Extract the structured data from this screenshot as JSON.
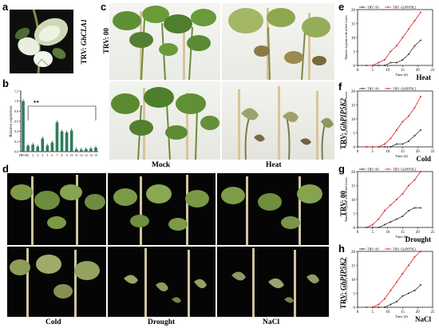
{
  "panel_letters": [
    "a",
    "b",
    "c",
    "d",
    "e",
    "f",
    "g",
    "h"
  ],
  "panel_a": {
    "side_label_prefix": "TRV: ",
    "side_label_gene": "GhCLA1"
  },
  "panel_b": {
    "significance": "**"
  },
  "panel_c": {
    "captions": [
      "Mock",
      "Heat"
    ]
  },
  "panel_d": {
    "captions": [
      "Cold",
      "Drought",
      "NaCl"
    ]
  },
  "side_labels": {
    "c_upper": "TRV: 00",
    "f": {
      "prefix": "TRV: ",
      "gene": "GhPIP5K2"
    },
    "g": "TRV: 00",
    "h": {
      "prefix": "TRV: ",
      "gene": "GhPIP5K2"
    }
  },
  "chart_data": [
    {
      "type": "bar",
      "panel": "b",
      "ylabel": "Relative expression",
      "categories": [
        "TRV:00",
        "1",
        "2",
        "3",
        "4",
        "5",
        "6",
        "7",
        "8",
        "9",
        "10",
        "11",
        "12",
        "13",
        "14",
        "15"
      ],
      "values": [
        1.0,
        0.12,
        0.14,
        0.1,
        0.26,
        0.12,
        0.18,
        0.58,
        0.4,
        0.38,
        0.42,
        0.05,
        0.04,
        0.05,
        0.06,
        0.08
      ],
      "ylim": [
        0,
        1.2
      ],
      "yticks": [
        0.0,
        0.2,
        0.4,
        0.6,
        0.8,
        1.0,
        1.2
      ],
      "bar_color": "#2e7d5b"
    },
    {
      "type": "line",
      "panel": "e",
      "condition": "Heat",
      "ylabel": "Number of plants with wilted leaves",
      "xlabel": "Time (d)",
      "xlim": [
        0,
        25
      ],
      "ylim": [
        0,
        20
      ],
      "xticks": [
        0,
        5,
        10,
        15,
        20,
        25
      ],
      "yticks": [
        0,
        5,
        10,
        15,
        20
      ],
      "series": [
        {
          "name": "TRV: 00",
          "color": "#333333",
          "x": [
            3,
            5,
            7,
            9,
            11,
            13,
            15,
            17,
            19,
            21
          ],
          "y": [
            0,
            0,
            0,
            0,
            1,
            1,
            2,
            4,
            7,
            9
          ]
        },
        {
          "name": "TRV: GhPIP5K2",
          "color": "#d62728",
          "x": [
            3,
            5,
            7,
            9,
            11,
            13,
            15,
            17,
            19,
            21
          ],
          "y": [
            0,
            0,
            1,
            2,
            5,
            7,
            10,
            13,
            16,
            19
          ]
        }
      ]
    },
    {
      "type": "line",
      "panel": "f",
      "condition": "Cold",
      "ylabel": "Number of plants with blackened new leaves",
      "xlabel": "Time (d)",
      "xlim": [
        0,
        25
      ],
      "ylim": [
        0,
        20
      ],
      "xticks": [
        0,
        5,
        10,
        15,
        20,
        25
      ],
      "yticks": [
        0,
        5,
        10,
        15,
        20
      ],
      "series": [
        {
          "name": "TRV: 00",
          "color": "#333333",
          "x": [
            3,
            5,
            7,
            9,
            11,
            13,
            15,
            17,
            19,
            21
          ],
          "y": [
            0,
            0,
            0,
            0,
            0,
            1,
            1,
            2,
            4,
            6
          ]
        },
        {
          "name": "TRV: GhPIP5K2",
          "color": "#d62728",
          "x": [
            3,
            5,
            7,
            9,
            11,
            13,
            15,
            17,
            19,
            21
          ],
          "y": [
            0,
            0,
            0,
            1,
            3,
            6,
            9,
            11,
            14,
            18
          ]
        }
      ]
    },
    {
      "type": "line",
      "panel": "g",
      "condition": "Drought",
      "ylabel": "Number of plants with wilted leaves",
      "xlabel": "Time (d)",
      "xlim": [
        0,
        25
      ],
      "ylim": [
        0,
        20
      ],
      "xticks": [
        0,
        5,
        10,
        15,
        20,
        25
      ],
      "yticks": [
        0,
        5,
        10,
        15,
        20
      ],
      "series": [
        {
          "name": "TRV: 00",
          "color": "#333333",
          "x": [
            3,
            5,
            7,
            9,
            11,
            13,
            15,
            17,
            19,
            21
          ],
          "y": [
            0,
            0,
            0,
            1,
            2,
            3,
            4,
            6,
            7,
            7
          ]
        },
        {
          "name": "TRV: GhPIP5K2",
          "color": "#d62728",
          "x": [
            3,
            5,
            7,
            9,
            11,
            13,
            15,
            17,
            19,
            21
          ],
          "y": [
            0,
            1,
            3,
            6,
            8,
            10,
            12,
            15,
            17,
            20
          ]
        }
      ]
    },
    {
      "type": "line",
      "panel": "h",
      "condition": "NaCl",
      "ylabel": "Number of plants with wilted leaves",
      "xlabel": "Time (d)",
      "xlim": [
        0,
        25
      ],
      "ylim": [
        0,
        20
      ],
      "xticks": [
        0,
        5,
        10,
        15,
        20,
        25
      ],
      "yticks": [
        0,
        5,
        10,
        15,
        20
      ],
      "series": [
        {
          "name": "TRV: 00",
          "color": "#333333",
          "x": [
            3,
            5,
            7,
            9,
            11,
            13,
            15,
            17,
            19,
            21
          ],
          "y": [
            0,
            0,
            0,
            0,
            1,
            2,
            4,
            5,
            6,
            8
          ]
        },
        {
          "name": "TRV: GhPIP5K2",
          "color": "#d62728",
          "x": [
            3,
            5,
            7,
            9,
            11,
            13,
            15,
            17,
            19,
            21
          ],
          "y": [
            0,
            0,
            1,
            3,
            6,
            9,
            12,
            15,
            18,
            20
          ]
        }
      ]
    }
  ]
}
